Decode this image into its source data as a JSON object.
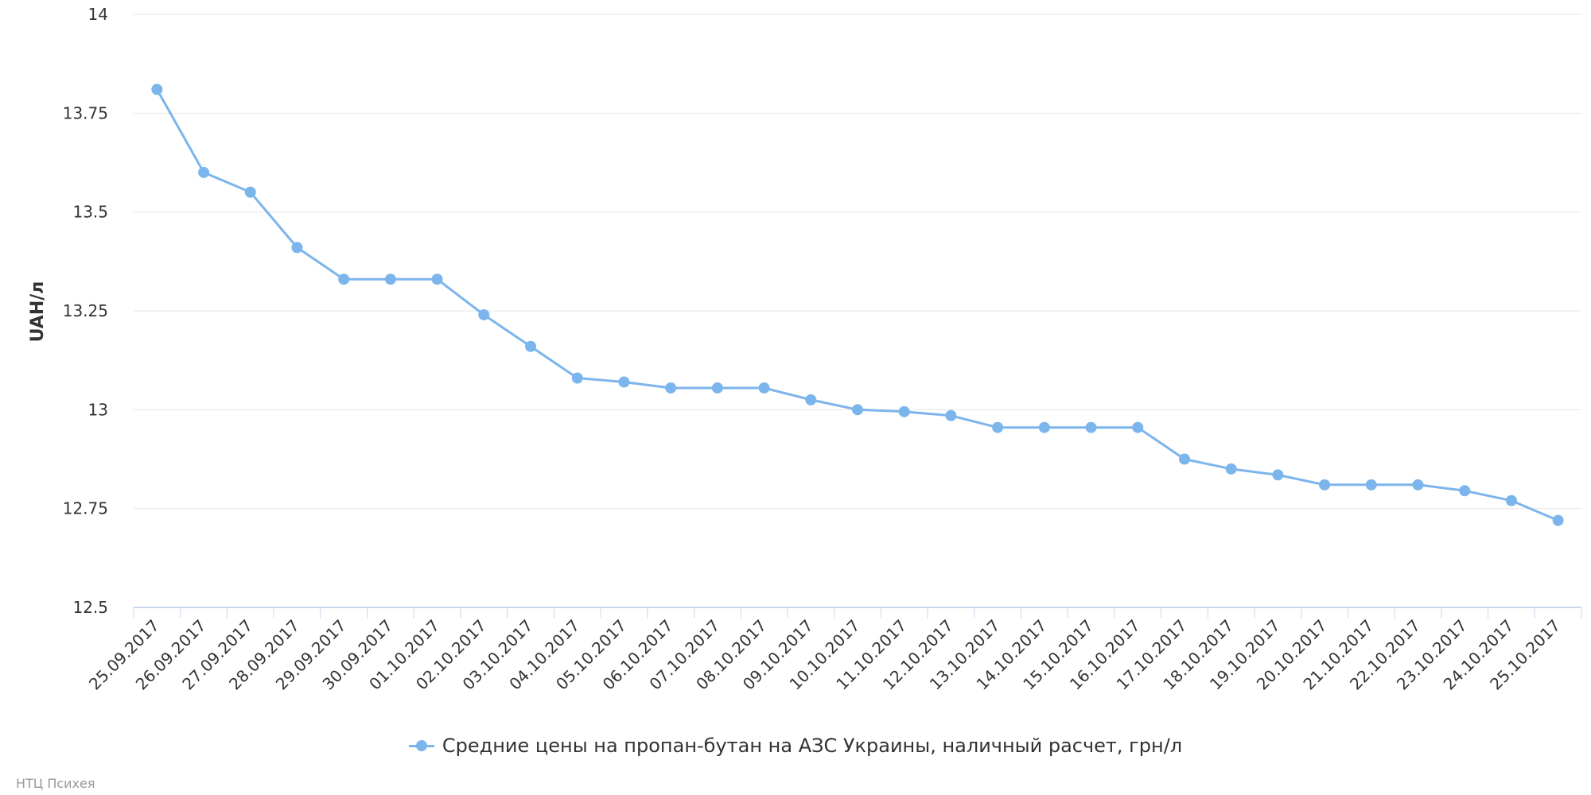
{
  "colors": {
    "series": "#7cb5ec",
    "grid": "#e6e6e6",
    "axis": "#ccd6eb",
    "text": "#333333",
    "credits": "#999999"
  },
  "legend": {
    "label": "Средние цены на пропан-бутан на АЗС Украины, наличный расчет, грн/л",
    "position": "bottom-center"
  },
  "credits": {
    "text": "НТЦ Психея"
  },
  "chart_data": {
    "type": "line",
    "title": "",
    "xlabel": "",
    "ylabel": "UAH/л",
    "ylim": [
      12.5,
      14
    ],
    "yticks": [
      12.5,
      12.75,
      13,
      13.25,
      13.5,
      13.75,
      14
    ],
    "ytick_labels": [
      "12.5",
      "12.75",
      "13",
      "13.25",
      "13.5",
      "13.75",
      "14"
    ],
    "grid": true,
    "legend": "bottom-center",
    "categories": [
      "25.09.2017",
      "26.09.2017",
      "27.09.2017",
      "28.09.2017",
      "29.09.2017",
      "30.09.2017",
      "01.10.2017",
      "02.10.2017",
      "03.10.2017",
      "04.10.2017",
      "05.10.2017",
      "06.10.2017",
      "07.10.2017",
      "08.10.2017",
      "09.10.2017",
      "10.10.2017",
      "11.10.2017",
      "12.10.2017",
      "13.10.2017",
      "14.10.2017",
      "15.10.2017",
      "16.10.2017",
      "17.10.2017",
      "18.10.2017",
      "19.10.2017",
      "20.10.2017",
      "21.10.2017",
      "22.10.2017",
      "23.10.2017",
      "24.10.2017",
      "25.10.2017"
    ],
    "series": [
      {
        "name": "Средние цены на пропан-бутан на АЗС Украины, наличный расчет, грн/л",
        "values": [
          13.81,
          13.6,
          13.55,
          13.41,
          13.33,
          13.33,
          13.33,
          13.24,
          13.16,
          13.08,
          13.07,
          13.055,
          13.055,
          13.055,
          13.025,
          13.0,
          12.995,
          12.985,
          12.955,
          12.955,
          12.955,
          12.955,
          12.875,
          12.85,
          12.835,
          12.81,
          12.81,
          12.81,
          12.795,
          12.77,
          12.72
        ]
      }
    ]
  }
}
